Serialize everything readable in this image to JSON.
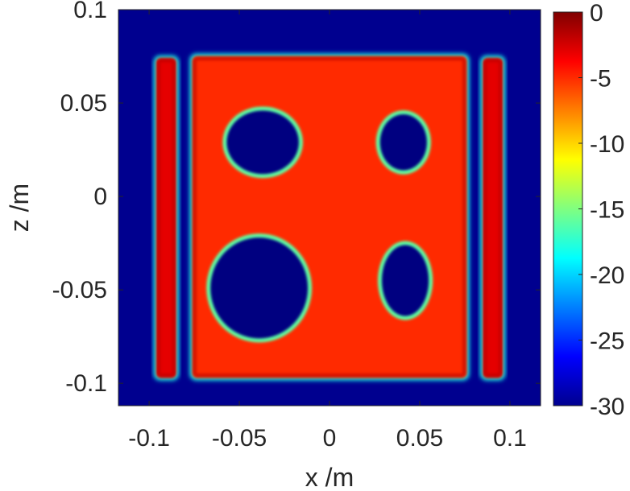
{
  "chart_data": {
    "type": "heatmap",
    "title": "",
    "xlabel": "x /m",
    "ylabel": "z /m",
    "xlim": [
      -0.117,
      0.117
    ],
    "ylim": [
      -0.112,
      0.1
    ],
    "x_ticks": [
      {
        "value": -0.1,
        "label": "-0.1"
      },
      {
        "value": -0.05,
        "label": "-0.05"
      },
      {
        "value": 0,
        "label": "0"
      },
      {
        "value": 0.05,
        "label": "0.05"
      },
      {
        "value": 0.1,
        "label": "0.1"
      }
    ],
    "y_ticks": [
      {
        "value": 0.1,
        "label": "0.1"
      },
      {
        "value": 0.05,
        "label": "0.05"
      },
      {
        "value": 0,
        "label": "0"
      },
      {
        "value": -0.05,
        "label": "-0.05"
      },
      {
        "value": -0.1,
        "label": "-0.1"
      }
    ],
    "colorbar": {
      "colormap": "jet",
      "clim": [
        -30,
        0
      ],
      "ticks": [
        {
          "value": 0,
          "label": "0"
        },
        {
          "value": -5,
          "label": "-5"
        },
        {
          "value": -10,
          "label": "-10"
        },
        {
          "value": -15,
          "label": "-15"
        },
        {
          "value": -20,
          "label": "-20"
        },
        {
          "value": -25,
          "label": "-25"
        },
        {
          "value": -30,
          "label": "-30"
        }
      ]
    },
    "background_value": -30,
    "features": [
      {
        "name": "left strip",
        "shape": "rect",
        "x": [
          -0.097,
          -0.084
        ],
        "z": [
          -0.098,
          0.075
        ],
        "value": -3
      },
      {
        "name": "right strip",
        "shape": "rect",
        "x": [
          0.084,
          0.097
        ],
        "z": [
          -0.098,
          0.075
        ],
        "value": -3
      },
      {
        "name": "main plate",
        "shape": "rect",
        "x": [
          -0.077,
          0.077
        ],
        "z": [
          -0.098,
          0.076
        ],
        "value": -5
      },
      {
        "name": "upper-left hole",
        "shape": "ellipse",
        "cx": -0.037,
        "cz": 0.029,
        "rx": 0.02,
        "rz": 0.017,
        "value": -30
      },
      {
        "name": "upper-right hole",
        "shape": "ellipse",
        "cx": 0.041,
        "cz": 0.029,
        "rx": 0.013,
        "rz": 0.015,
        "value": -30
      },
      {
        "name": "lower-left hole",
        "shape": "ellipse",
        "cx": -0.039,
        "cz": -0.049,
        "rx": 0.027,
        "rz": 0.027,
        "value": -30
      },
      {
        "name": "lower-right hole",
        "shape": "ellipse",
        "cx": 0.042,
        "cz": -0.045,
        "rx": 0.013,
        "rz": 0.019,
        "value": -30
      }
    ]
  }
}
